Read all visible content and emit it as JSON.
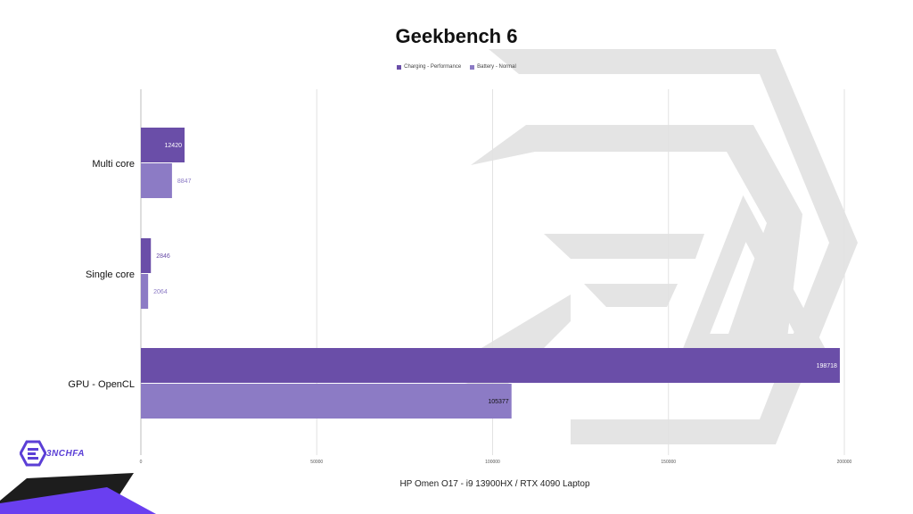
{
  "chart_data": {
    "type": "bar",
    "orientation": "horizontal",
    "title": "Geekbench 6",
    "xlabel": "HP Omen O17 - i9 13900HX / RTX 4090 Laptop",
    "ylabel": "",
    "categories": [
      "Multi core",
      "Single core",
      "GPU - OpenCL"
    ],
    "series": [
      {
        "name": "Charging - Performance",
        "values": [
          12420,
          2846,
          198718
        ]
      },
      {
        "name": "Battery - Normal",
        "values": [
          8847,
          2064,
          105377
        ]
      }
    ],
    "xlim": [
      0,
      200000
    ],
    "xticks": [
      0,
      50000,
      100000,
      150000,
      200000
    ],
    "legend_position": "top-center",
    "grid": true
  },
  "colors": {
    "series_1": "#6a4ea8",
    "series_2": "#8c7bc5",
    "watermark": "#e4e4e4",
    "brand": "#5b3fd6"
  },
  "brand": {
    "name": "3NCHFA"
  }
}
